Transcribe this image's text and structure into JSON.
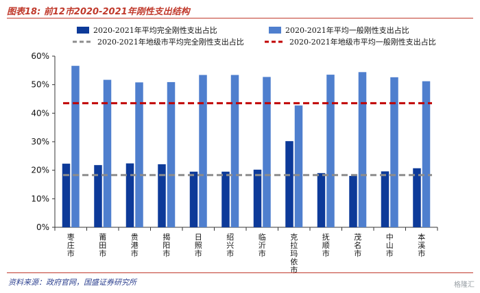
{
  "figure": {
    "title": "图表18: 前12市2020-2021年刚性支出结构",
    "source": "资料来源：政府官网，国盛证券研究所",
    "watermark": "格隆汇"
  },
  "colors": {
    "bar_dark": "#0d3a99",
    "bar_light": "#4f7fce",
    "line_gray": "#8c8c8c",
    "line_red": "#c00000",
    "accent": "#c0392b"
  },
  "chart_data": {
    "type": "bar",
    "categories": [
      "枣庄市",
      "莆田市",
      "贵港市",
      "揭阳市",
      "日照市",
      "绍兴市",
      "临沂市",
      "克拉玛依市",
      "抚顺市",
      "茂名市",
      "中山市",
      "本溪市"
    ],
    "series": [
      {
        "name": "2020-2021年平均完全刚性支出占比",
        "type": "bar",
        "color": "#0d3a99",
        "values": [
          22.3,
          21.8,
          22.4,
          22.1,
          19.5,
          19.5,
          20.2,
          30.2,
          19.0,
          18.0,
          19.6,
          20.7
        ]
      },
      {
        "name": "2020-2021年平均一般刚性支出占比",
        "type": "bar",
        "color": "#4f7fce",
        "values": [
          56.6,
          51.7,
          50.8,
          50.9,
          53.4,
          53.4,
          52.7,
          42.7,
          53.5,
          54.4,
          52.6,
          51.2
        ]
      },
      {
        "name": "2020-2021年地级市平均完全刚性支出占比",
        "type": "reference-line",
        "color": "#8c8c8c",
        "value": 18.3
      },
      {
        "name": "2020-2021年地级市平均一般刚性支出占比",
        "type": "reference-line",
        "color": "#c00000",
        "value": 43.5
      }
    ],
    "yticks": [
      "0%",
      "10%",
      "20%",
      "30%",
      "40%",
      "50%",
      "60%"
    ],
    "ylim": [
      0,
      60
    ],
    "unit": "%",
    "legend_position": "top",
    "grid": false
  }
}
